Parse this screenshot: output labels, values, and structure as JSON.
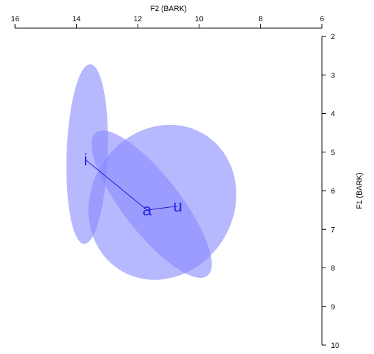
{
  "chart_data": {
    "type": "scatter",
    "title": "",
    "xlabel": "F2 (BARK)",
    "ylabel": "F1 (BARK)",
    "x_axis": {
      "label": "F2 (BARK)",
      "position": "top",
      "reversed": true,
      "range": [
        16,
        6
      ],
      "ticks": [
        16,
        14,
        12,
        10,
        8,
        6
      ]
    },
    "y_axis": {
      "label": "F1 (BARK)",
      "position": "right",
      "reversed": true,
      "range": [
        2,
        10
      ],
      "ticks": [
        2,
        3,
        4,
        5,
        6,
        7,
        8,
        9,
        10
      ]
    },
    "grid": false,
    "fill_color": "#8888ff",
    "fill_opacity": 0.6,
    "text_color": "#2626e6",
    "line_color": "#1a1ad9",
    "points": [
      {
        "label": "i",
        "x": 13.7,
        "y": 5.2
      },
      {
        "label": "a",
        "x": 11.7,
        "y": 6.5
      },
      {
        "label": "u",
        "x": 10.7,
        "y": 6.4
      }
    ],
    "trajectory": [
      "i",
      "a",
      "u"
    ],
    "ellipses": [
      {
        "vowel": "i",
        "cx": 13.65,
        "cy": 5.05,
        "rx": 0.67,
        "ry": 2.33,
        "angle_deg": 2
      },
      {
        "vowel": "a",
        "cx": 11.55,
        "cy": 6.35,
        "rx": 2.95,
        "ry": 0.74,
        "angle_deg": 52
      },
      {
        "vowel": "u",
        "cx": 11.2,
        "cy": 6.3,
        "rx": 2.6,
        "ry": 1.85,
        "angle_deg": -57
      }
    ]
  }
}
